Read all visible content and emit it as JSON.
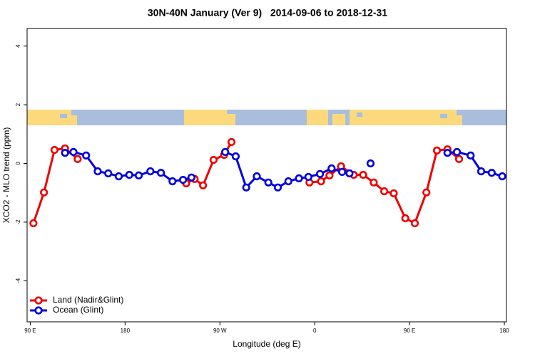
{
  "chart_data": {
    "type": "line",
    "title": "30N-40N January (Ver 9)   2014-09-06 to 2018-12-31",
    "x_label": "Longitude (deg E)",
    "y_label": "XCO2 - MLO trend (ppm)",
    "xlim": [
      87,
      542
    ],
    "xticks": [
      {
        "value": 90,
        "label": "90 E"
      },
      180,
      {
        "value": 270,
        "label": "90 W"
      },
      {
        "value": 360,
        "label": "0"
      },
      {
        "value": 450,
        "label": "90 E"
      },
      {
        "value": 540,
        "label": "180"
      }
    ],
    "ylim": [
      -5.4,
      4.6
    ],
    "yticks": [
      -4,
      -2,
      0,
      2,
      4
    ],
    "legend": "bottom-left",
    "series": [
      {
        "name": "Land (Nadir&Glint)",
        "color": "#ee0000",
        "x": [
          93,
          103,
          113,
          123,
          135,
          null,
          238,
          246,
          254,
          264,
          274,
          281,
          null,
          355,
          366,
          374,
          385,
          397,
          406,
          416,
          426,
          435,
          446,
          455,
          466,
          476,
          486,
          497
        ],
        "values": [
          -2.04,
          -0.99,
          0.46,
          0.51,
          0.15,
          null,
          -0.68,
          -0.53,
          -0.75,
          0.12,
          0.29,
          0.73,
          null,
          -0.65,
          -0.61,
          -0.41,
          -0.1,
          -0.39,
          -0.39,
          -0.65,
          -0.95,
          -1.02,
          -1.87,
          -2.04,
          -0.99,
          0.44,
          0.48,
          0.15
        ]
      },
      {
        "name": "Ocean (Glint)",
        "color": "#0000dd",
        "x": [
          123,
          131,
          143,
          154,
          164,
          174,
          184,
          193,
          204,
          214,
          225,
          235,
          243,
          null,
          275,
          285,
          295,
          305,
          316,
          325,
          335,
          345,
          354,
          365,
          376,
          386,
          393,
          null,
          413,
          null,
          486,
          495,
          508,
          518,
          528,
          538
        ],
        "values": [
          0.36,
          0.39,
          0.27,
          -0.27,
          -0.34,
          -0.44,
          -0.39,
          -0.41,
          -0.27,
          -0.32,
          -0.61,
          -0.56,
          -0.48,
          null,
          0.39,
          0.24,
          -0.82,
          -0.44,
          -0.65,
          -0.82,
          -0.61,
          -0.51,
          -0.46,
          -0.36,
          -0.17,
          -0.29,
          -0.34,
          null,
          0,
          null,
          0.36,
          0.39,
          0.27,
          -0.27,
          -0.32,
          -0.44
        ]
      }
    ]
  }
}
